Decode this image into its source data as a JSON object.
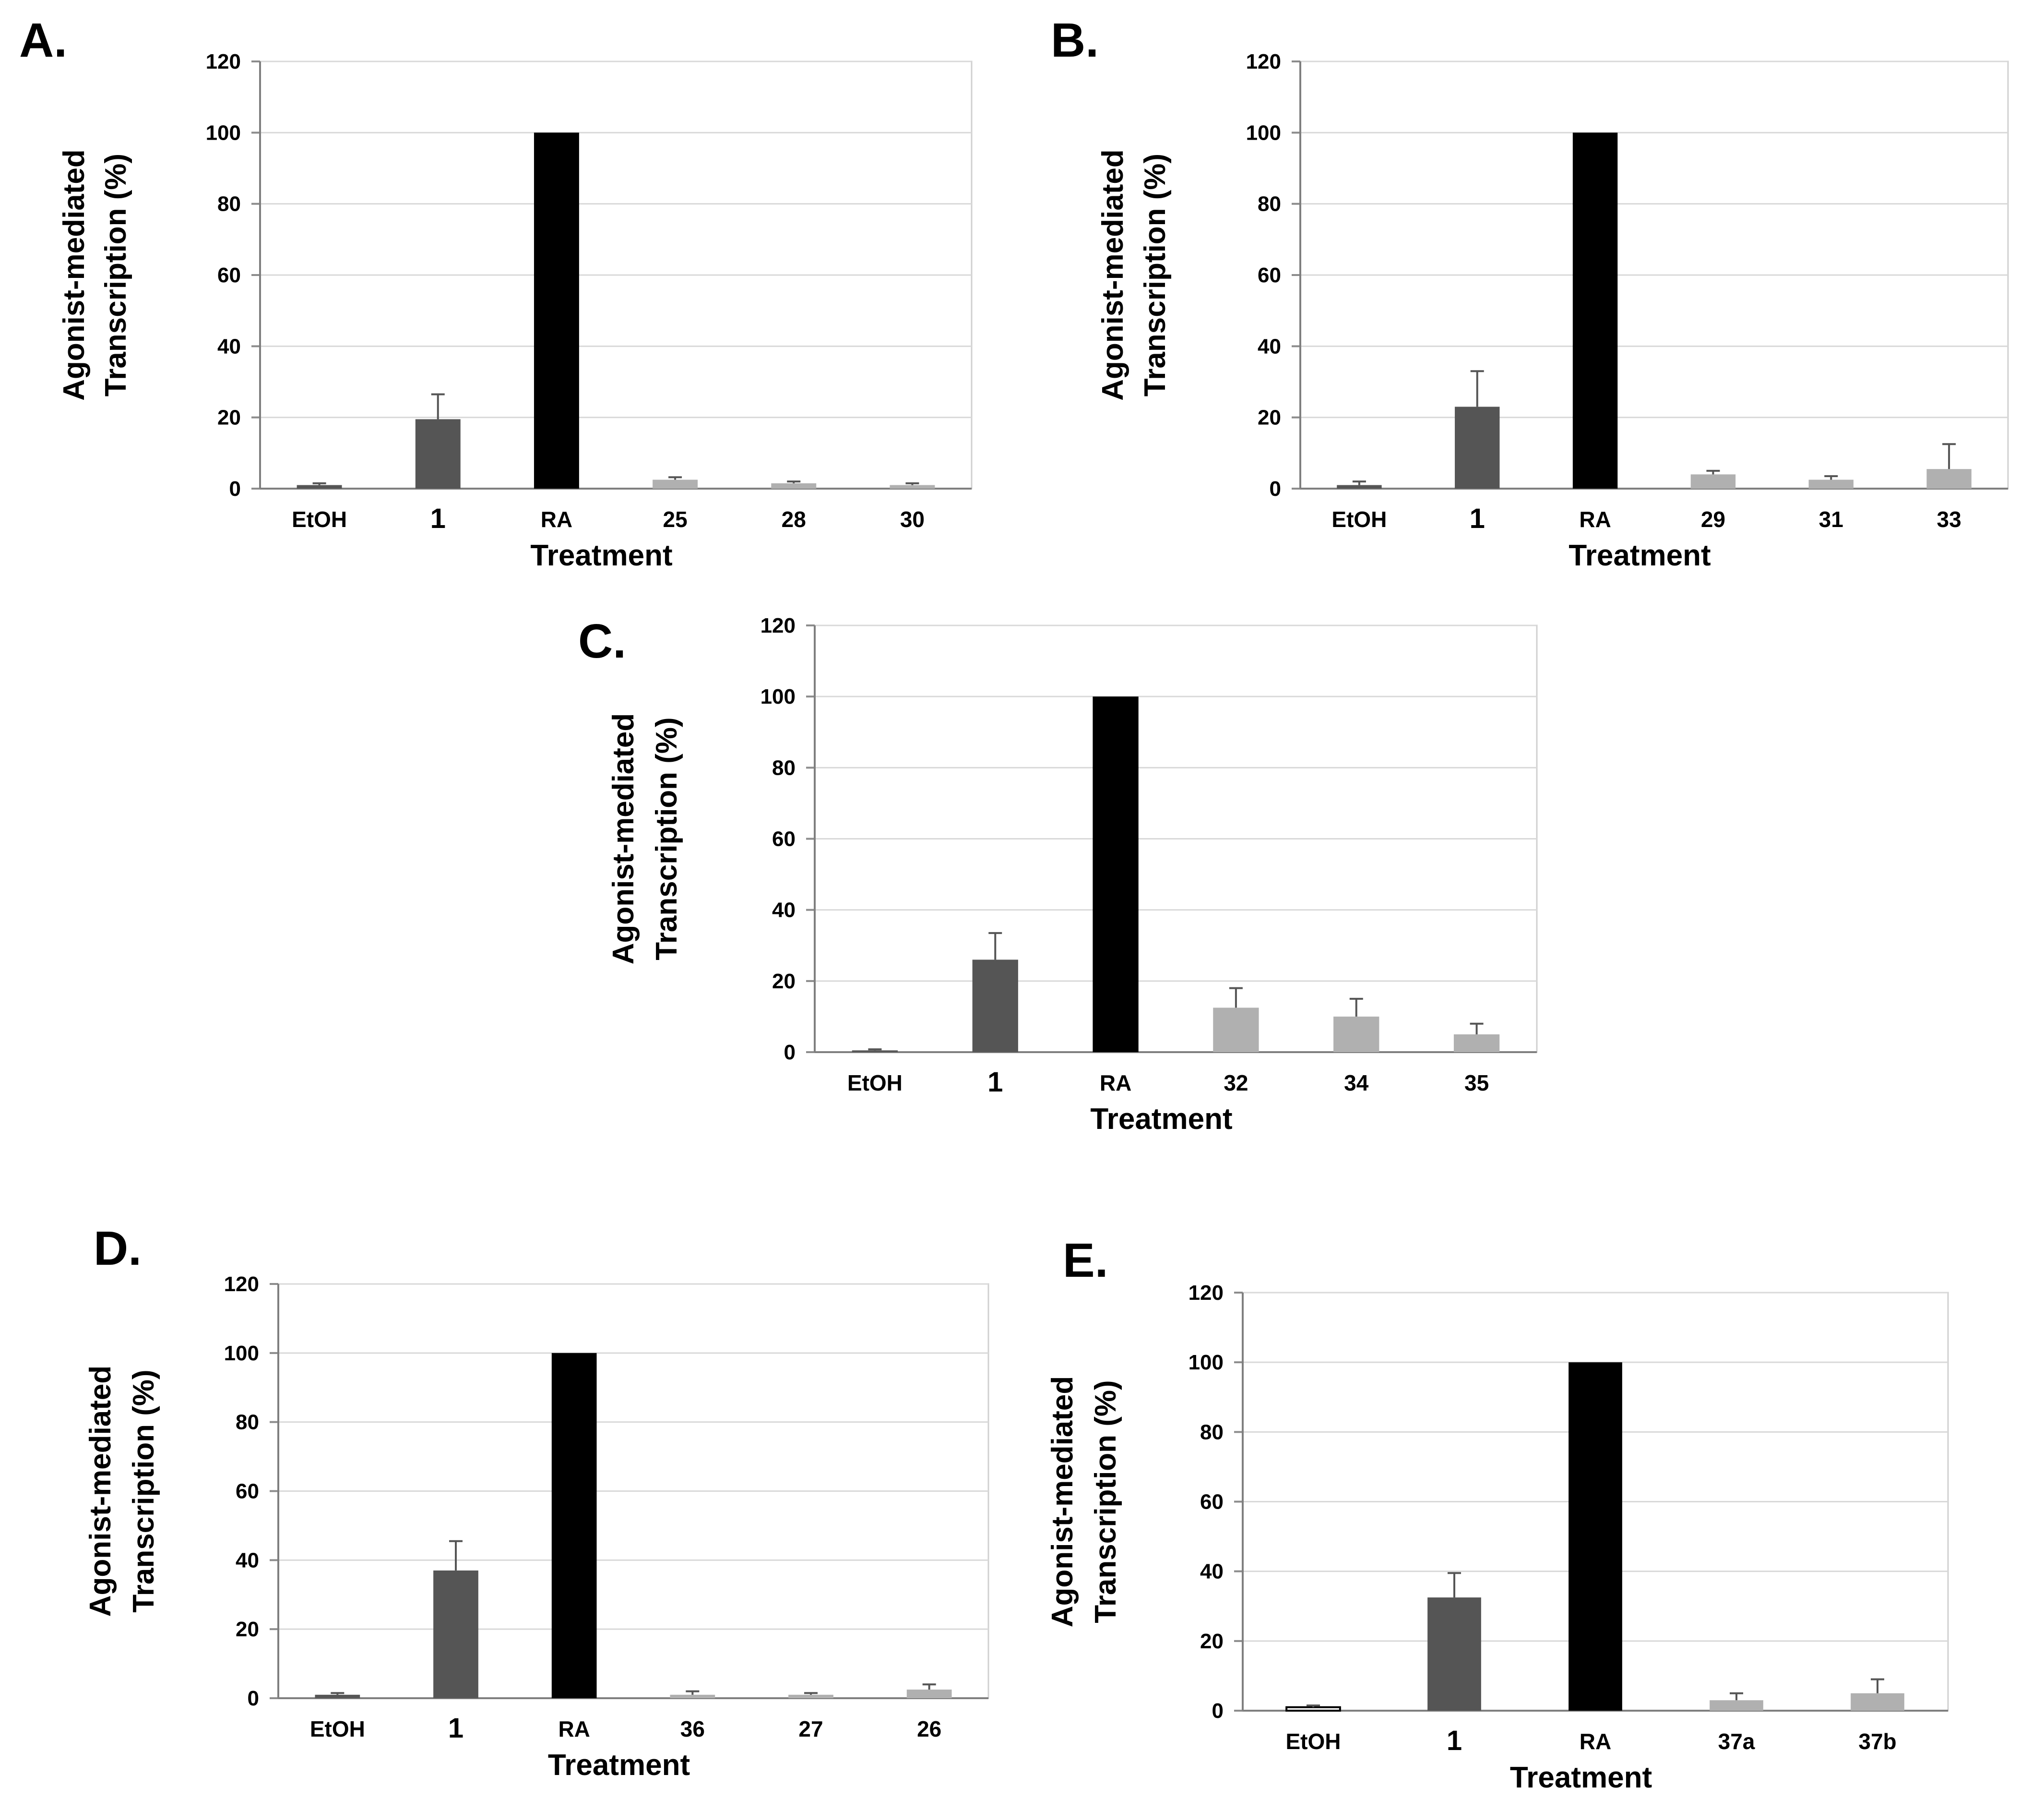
{
  "colors": {
    "black": "#000000",
    "dark": "#555555",
    "light": "#b0b0b0",
    "white": "#ffffff"
  },
  "chart_data": [
    {
      "panel": "A.",
      "type": "bar",
      "title": "",
      "xlabel": "Treatment",
      "ylabel_line1": "Agonist-mediated",
      "ylabel_line2": "Transcription (%)",
      "ylim": [
        0,
        120
      ],
      "yticks": [
        "0",
        "20",
        "40",
        "60",
        "80",
        "100",
        "120"
      ],
      "categories": [
        "EtOH",
        "1",
        "RA",
        "25",
        "28",
        "30"
      ],
      "values": [
        1,
        19.5,
        100,
        2.5,
        1.5,
        1
      ],
      "errors": [
        0.5,
        7,
        0,
        0.7,
        0.5,
        0.5
      ],
      "bar_colors": [
        "dark",
        "dark",
        "black",
        "light",
        "light",
        "light"
      ]
    },
    {
      "panel": "B.",
      "type": "bar",
      "title": "",
      "xlabel": "Treatment",
      "ylabel_line1": "Agonist-mediated",
      "ylabel_line2": "Transcription (%)",
      "ylim": [
        0,
        120
      ],
      "yticks": [
        "0",
        "20",
        "40",
        "60",
        "80",
        "100",
        "120"
      ],
      "categories": [
        "EtOH",
        "1",
        "RA",
        "29",
        "31",
        "33"
      ],
      "values": [
        1,
        23,
        100,
        4,
        2.5,
        5.5
      ],
      "errors": [
        1,
        10,
        0,
        1,
        1,
        7
      ],
      "bar_colors": [
        "dark",
        "dark",
        "black",
        "light",
        "light",
        "light"
      ]
    },
    {
      "panel": "C.",
      "type": "bar",
      "title": "",
      "xlabel": "Treatment",
      "ylabel_line1": "Agonist-mediated",
      "ylabel_line2": "Transcription (%)",
      "ylim": [
        0,
        120
      ],
      "yticks": [
        "0",
        "20",
        "40",
        "60",
        "80",
        "100",
        "120"
      ],
      "categories": [
        "EtOH",
        "1",
        "RA",
        "32",
        "34",
        "35"
      ],
      "values": [
        0.5,
        26,
        100,
        12.5,
        10,
        5
      ],
      "errors": [
        0.3,
        7.5,
        0,
        5.5,
        5,
        3
      ],
      "bar_colors": [
        "dark",
        "dark",
        "black",
        "light",
        "light",
        "light"
      ]
    },
    {
      "panel": "D.",
      "type": "bar",
      "title": "",
      "xlabel": "Treatment",
      "ylabel_line1": "Agonist-mediated",
      "ylabel_line2": "Transcription (%)",
      "ylim": [
        0,
        120
      ],
      "yticks": [
        "0",
        "20",
        "40",
        "60",
        "80",
        "100",
        "120"
      ],
      "categories": [
        "EtOH",
        "1",
        "RA",
        "36",
        "27",
        "26"
      ],
      "values": [
        1,
        37,
        100,
        1,
        1,
        2.5
      ],
      "errors": [
        0.5,
        8.5,
        0,
        1,
        0.5,
        1.5
      ],
      "bar_colors": [
        "dark",
        "dark",
        "black",
        "light",
        "light",
        "light"
      ]
    },
    {
      "panel": "E.",
      "type": "bar",
      "title": "",
      "xlabel": "Treatment",
      "ylabel_line1": "Agonist-mediated",
      "ylabel_line2": "Transcription (%)",
      "ylim": [
        0,
        120
      ],
      "yticks": [
        "0",
        "20",
        "40",
        "60",
        "80",
        "100",
        "120"
      ],
      "categories": [
        "EtOH",
        "1",
        "RA",
        "37a",
        "37b"
      ],
      "values": [
        1,
        32.5,
        100,
        3,
        5
      ],
      "errors": [
        0.5,
        7,
        0,
        2,
        4
      ],
      "bar_colors": [
        "white",
        "dark",
        "black",
        "light",
        "light"
      ]
    }
  ]
}
